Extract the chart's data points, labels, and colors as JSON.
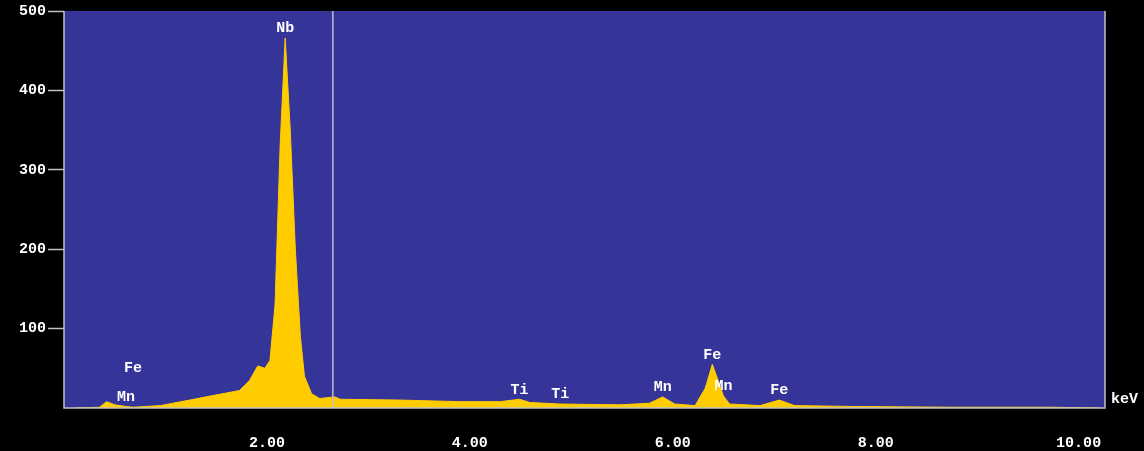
{
  "chart_data": {
    "type": "area",
    "xlabel": "keV",
    "x": [
      0.11,
      0.35,
      0.42,
      0.5,
      0.61,
      0.68,
      0.95,
      1.24,
      1.44,
      1.73,
      1.83,
      1.91,
      1.98,
      2.03,
      2.08,
      2.13,
      2.18,
      2.23,
      2.28,
      2.33,
      2.37,
      2.44,
      2.52,
      2.67,
      2.72,
      3.31,
      3.9,
      4.3,
      4.49,
      4.59,
      4.89,
      5.48,
      5.77,
      5.9,
      6.02,
      6.22,
      6.32,
      6.39,
      6.46,
      6.5,
      6.56,
      6.86,
      7.05,
      7.2,
      7.74,
      8.73,
      9.71,
      10.2
    ],
    "series": [
      {
        "color": "#ffcc00",
        "values": [
          0,
          1,
          8,
          4,
          2,
          1,
          3,
          10,
          15,
          22,
          35,
          53,
          50,
          60,
          130,
          330,
          466,
          350,
          200,
          90,
          40,
          18,
          12,
          14,
          11,
          10,
          8,
          8,
          11,
          7,
          5,
          4,
          6,
          14,
          5,
          3,
          25,
          55,
          30,
          15,
          5,
          3,
          10,
          3,
          2,
          1,
          1,
          0
        ]
      }
    ],
    "xlim": [
      0,
      10.26
    ],
    "ylim": [
      0,
      500
    ],
    "xticks": [
      {
        "value": 2,
        "label": "2.00"
      },
      {
        "value": 4,
        "label": "4.00"
      },
      {
        "value": 6,
        "label": "6.00"
      },
      {
        "value": 8,
        "label": "8.00"
      },
      {
        "value": 10,
        "label": "10.00"
      }
    ],
    "yticks": [
      100,
      200,
      300,
      400,
      500
    ],
    "grid": false,
    "legend": false,
    "ref_lines": [
      {
        "axis": "x",
        "value": 2.65,
        "color": "#c0c0c8"
      }
    ],
    "annotations": [
      {
        "text": "Nb",
        "x": 2.18,
        "y": 466
      },
      {
        "text": "Fe",
        "x": 0.68,
        "y": 1
      },
      {
        "text": "Mn",
        "x": 0.61,
        "y": 2
      },
      {
        "text": "Ti",
        "x": 4.49,
        "y": 11
      },
      {
        "text": "Ti",
        "x": 4.89,
        "y": 5
      },
      {
        "text": "Mn",
        "x": 5.9,
        "y": 14
      },
      {
        "text": "Fe",
        "x": 6.39,
        "y": 55
      },
      {
        "text": "Mn",
        "x": 6.5,
        "y": 15
      },
      {
        "text": "Fe",
        "x": 7.05,
        "y": 10
      }
    ]
  }
}
